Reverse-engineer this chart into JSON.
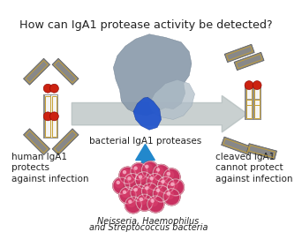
{
  "title": "How can IgA1 protease activity be detected?",
  "title_fontsize": 9.2,
  "bg_color": "#ffffff",
  "label_left": "human IgA1\nprotects\nagainst infection",
  "label_right": "cleaved IgA1\ncannot protect\nagainst infection",
  "label_center": "bacterial IgA1 proteases",
  "label_bacteria_1": "Neisseria, Haemophilus",
  "label_bacteria_2": "and Streptococcus bacteria",
  "arrow_color": "#adb8b8",
  "blue_arrow_color": "#2288cc",
  "bacteria_color": "#cc3360",
  "ab_gray": "#888888",
  "ab_white": "#f5f5f5",
  "ab_gold": "#c8a030",
  "ab_red": "#cc2211"
}
